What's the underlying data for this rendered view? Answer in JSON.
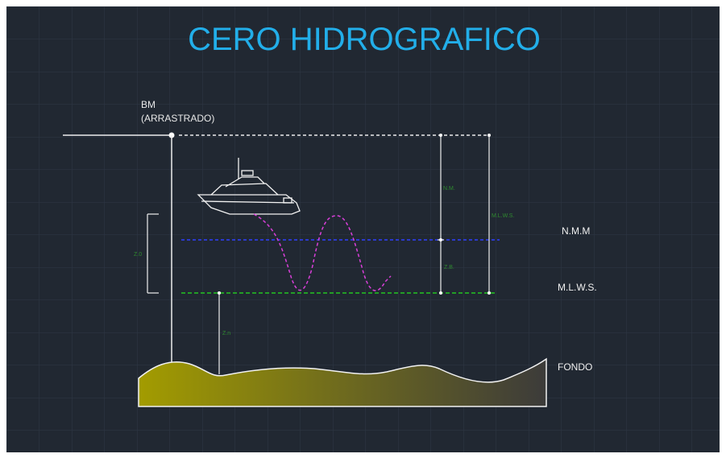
{
  "title": "CERO HIDROGRAFICO",
  "benchmark": {
    "label": "BM",
    "note": "(ARRASTRADO)"
  },
  "levels": {
    "mean_sea_level": "N.M.M",
    "low_water": "M.L.W.S.",
    "bottom": "FONDO"
  },
  "dimension_labels": {
    "nm": "N.M.",
    "mlws": "M.L.W.S.",
    "zb": "Z.B.",
    "left": "Z.0",
    "depth": "Z.n"
  }
}
